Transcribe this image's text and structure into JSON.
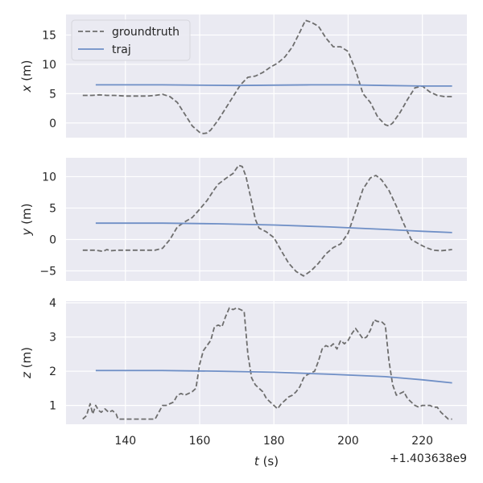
{
  "chart_data": {
    "type": "line",
    "shared_x": {
      "label_var": "t",
      "label_unit": " (s)",
      "xlim": [
        124,
        232
      ],
      "ticks": [
        140,
        160,
        180,
        200,
        220
      ],
      "tick_labels": [
        "140",
        "160",
        "180",
        "200",
        "220"
      ],
      "offset_text": "+1.403638e9"
    },
    "legend": {
      "placement": "upper-left of top panel",
      "entries": [
        {
          "name": "groundtruth",
          "style": "dashed",
          "color": "#6e6e6e"
        },
        {
          "name": "traj",
          "style": "solid",
          "color": "#6f8fc6"
        }
      ]
    },
    "grid": true,
    "background": "#eaeaf2",
    "panels": [
      {
        "ylabel_var": "x",
        "ylabel_unit": " (m)",
        "ylim": [
          -2.5,
          18.5
        ],
        "yticks": [
          0,
          5,
          10,
          15
        ],
        "ytick_labels": [
          "0",
          "5",
          "10",
          "15"
        ],
        "series": [
          {
            "name": "groundtruth",
            "x": [
              128.5,
              131,
              133,
              135,
              137,
              140,
              143,
              146,
              148,
              150,
              152,
              154,
              156,
              158,
              160,
              161,
              162,
              163,
              165,
              167,
              169,
              171,
              173,
              175,
              177,
              179,
              181,
              183,
              185,
              187,
              188.5,
              190,
              192,
              194,
              196,
              198,
              200,
              202,
              204,
              206,
              208,
              210,
              211,
              212,
              214,
              216,
              218,
              220,
              222,
              224,
              226,
              228
            ],
            "y": [
              4.7,
              4.7,
              4.8,
              4.7,
              4.7,
              4.6,
              4.6,
              4.6,
              4.7,
              4.9,
              4.5,
              3.5,
              1.5,
              -0.5,
              -1.6,
              -1.8,
              -1.7,
              -1.2,
              0.5,
              2.5,
              4.5,
              6.5,
              7.8,
              8.0,
              8.6,
              9.5,
              10.2,
              11.3,
              13.0,
              15.5,
              17.5,
              17.2,
              16.5,
              14.5,
              13.0,
              13.0,
              12.2,
              9.0,
              5.0,
              3.5,
              1.0,
              -0.3,
              -0.5,
              0.0,
              1.8,
              4.0,
              6.0,
              6.3,
              5.3,
              4.7,
              4.5,
              4.5
            ]
          },
          {
            "name": "traj",
            "x": [
              132,
              150,
              170,
              190,
              200,
              210,
              220,
              228
            ],
            "y": [
              6.5,
              6.5,
              6.4,
              6.5,
              6.5,
              6.4,
              6.3,
              6.3
            ]
          }
        ]
      },
      {
        "ylabel_var": "y",
        "ylabel_unit": " (m)",
        "ylim": [
          -6.6,
          13.0
        ],
        "yticks": [
          -5,
          0,
          5,
          10
        ],
        "ytick_labels": [
          "−5",
          "0",
          "5",
          "10"
        ],
        "series": [
          {
            "name": "groundtruth",
            "x": [
              128.5,
              132,
              134,
              135,
              136,
              138,
              140,
              144,
              148,
              150,
              152,
              154,
              156,
              158,
              160,
              162,
              164,
              165,
              167,
              169,
              170.5,
              171.5,
              172.5,
              174,
              175,
              176,
              178,
              180,
              182,
              184,
              186,
              188,
              190,
              192,
              194,
              196,
              198,
              200,
              202,
              204,
              206,
              207.5,
              209,
              211,
              213,
              215,
              217,
              219,
              221,
              223,
              225,
              228
            ],
            "y": [
              -1.7,
              -1.7,
              -1.9,
              -1.6,
              -1.8,
              -1.7,
              -1.7,
              -1.7,
              -1.7,
              -1.4,
              0.0,
              2.0,
              2.8,
              3.5,
              4.8,
              6.2,
              8.0,
              8.8,
              9.7,
              10.5,
              11.8,
              11.6,
              10.0,
              6.0,
              3.2,
              1.8,
              1.2,
              0.3,
              -1.8,
              -3.8,
              -5.1,
              -5.8,
              -5.0,
              -3.8,
              -2.3,
              -1.3,
              -0.7,
              1.0,
              4.5,
              8.0,
              9.8,
              10.2,
              9.5,
              7.8,
              5.3,
              2.5,
              0.0,
              -0.7,
              -1.3,
              -1.7,
              -1.8,
              -1.6
            ]
          },
          {
            "name": "traj",
            "x": [
              132,
              150,
              165,
              180,
              195,
              210,
              220,
              228
            ],
            "y": [
              2.6,
              2.6,
              2.5,
              2.3,
              2.0,
              1.6,
              1.3,
              1.1
            ]
          }
        ]
      },
      {
        "ylabel_var": "z",
        "ylabel_unit": " (m)",
        "ylim": [
          0.45,
          4.05
        ],
        "yticks": [
          1,
          2,
          3,
          4
        ],
        "ytick_labels": [
          "1",
          "2",
          "3",
          "4"
        ],
        "series": [
          {
            "name": "groundtruth",
            "x": [
              128.5,
              129.5,
              130.5,
              131.2,
              132,
              132.8,
              133.5,
              134.5,
              135.5,
              136.5,
              137.5,
              138,
              140,
              143,
              146,
              148,
              149,
              150,
              151,
              152,
              153,
              154,
              155,
              156,
              157,
              158,
              159,
              160,
              161,
              162,
              163,
              164,
              165,
              166,
              167,
              168,
              169,
              170,
              171,
              172,
              173,
              174,
              175,
              176,
              177,
              178,
              179,
              180,
              181,
              182,
              183,
              184,
              185,
              186,
              187,
              188,
              189,
              190,
              191,
              192,
              193,
              194,
              195,
              196,
              197,
              198,
              199,
              200,
              201,
              202,
              203,
              204,
              205,
              206,
              207,
              208,
              209,
              210,
              211,
              212,
              213,
              214,
              215,
              216,
              217,
              218,
              219,
              220,
              221,
              222,
              223,
              224,
              225,
              226,
              227,
              228
            ],
            "y": [
              0.6,
              0.7,
              1.05,
              0.75,
              1.0,
              0.85,
              0.8,
              0.9,
              0.8,
              0.85,
              0.75,
              0.6,
              0.6,
              0.6,
              0.6,
              0.6,
              0.8,
              1.0,
              1.0,
              1.05,
              1.1,
              1.3,
              1.35,
              1.3,
              1.35,
              1.4,
              1.5,
              2.2,
              2.6,
              2.75,
              2.9,
              3.3,
              3.35,
              3.3,
              3.6,
              3.85,
              3.8,
              3.85,
              3.8,
              3.75,
              2.5,
              1.8,
              1.6,
              1.5,
              1.4,
              1.2,
              1.1,
              1.0,
              0.9,
              1.05,
              1.15,
              1.25,
              1.3,
              1.4,
              1.55,
              1.8,
              1.9,
              1.95,
              2.0,
              2.3,
              2.65,
              2.75,
              2.7,
              2.8,
              2.65,
              2.9,
              2.8,
              2.9,
              3.1,
              3.25,
              3.1,
              2.95,
              3.0,
              3.2,
              3.5,
              3.45,
              3.45,
              3.35,
              2.3,
              1.6,
              1.3,
              1.35,
              1.4,
              1.2,
              1.1,
              1.0,
              0.95,
              1.0,
              1.0,
              1.0,
              0.95,
              0.95,
              0.8,
              0.7,
              0.6,
              0.6
            ]
          },
          {
            "name": "traj",
            "x": [
              132,
              150,
              165,
              180,
              195,
              210,
              220,
              228
            ],
            "y": [
              2.02,
              2.02,
              2.0,
              1.97,
              1.91,
              1.84,
              1.75,
              1.66
            ]
          }
        ]
      }
    ]
  }
}
